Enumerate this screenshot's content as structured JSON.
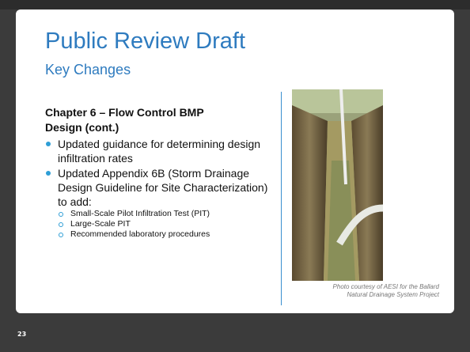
{
  "header": {
    "title": "Public Review Draft",
    "subtitle": "Key Changes"
  },
  "content": {
    "heading": "Chapter 6 – Flow Control BMP Design (cont.)",
    "bullets": [
      {
        "text": "Updated guidance for determining design infiltration rates",
        "subitems": []
      },
      {
        "text": "Updated Appendix 6B (Storm Drainage Design Guideline for Site Characterization) to add:",
        "subitems": [
          "Small-Scale Pilot Infiltration Test (PIT)",
          "Large-Scale PIT",
          "Recommended laboratory procedures"
        ]
      }
    ]
  },
  "photo": {
    "caption": [
      "Photo courtesy of AESI for the Ballard",
      "Natural Drainage System Project"
    ]
  },
  "slide_number": "23"
}
